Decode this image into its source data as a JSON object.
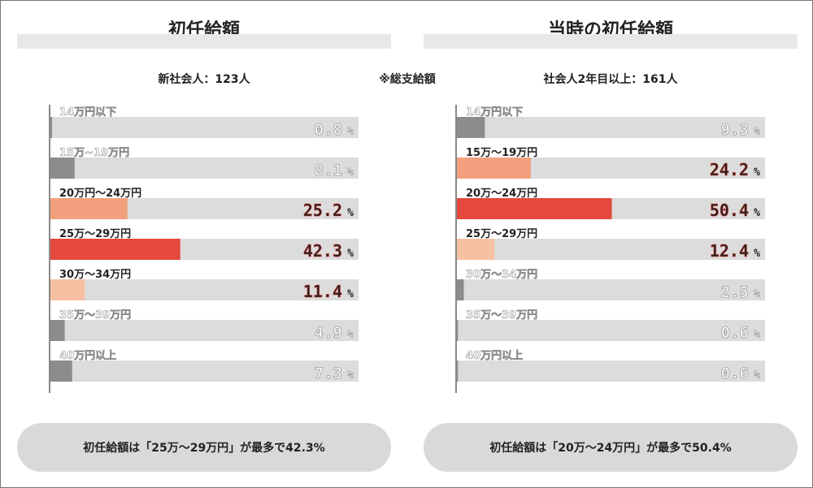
{
  "note": "※総支給額",
  "chart_data": [
    {
      "type": "bar",
      "title": "初任給額",
      "subtitle": "新社会人：123人",
      "categories": [
        "14万円以下",
        "15万~19万円",
        "20万円～24万円",
        "25万～29万円",
        "30万～34万円",
        "35万～39万円",
        "40万円以上"
      ],
      "values": [
        0.8,
        8.1,
        25.2,
        42.3,
        11.4,
        4.9,
        7.3
      ],
      "value_labels": [
        "0.8",
        "8.1",
        "25.2",
        "42.3",
        "11.4",
        "4.9",
        "7.3"
      ],
      "unit": "%",
      "xlim": [
        0,
        100
      ],
      "colors": [
        "#8c8c8c",
        "#8c8c8c",
        "#f2a07e",
        "#e5483c",
        "#f6c0a2",
        "#8c8c8c",
        "#8c8c8c"
      ],
      "summary": "初任給額は「25万～29万円」が最多で42.3%"
    },
    {
      "type": "bar",
      "title": "当時の初任給額",
      "subtitle": "社会人2年目以上：161人",
      "categories": [
        "14万円以下",
        "15万～19万円",
        "20万～24万円",
        "25万～29万円",
        "30万～34万円",
        "35万～39万円",
        "40万円以上"
      ],
      "values": [
        9.3,
        24.2,
        50.4,
        12.4,
        2.5,
        0.6,
        0.6
      ],
      "value_labels": [
        "9.3",
        "24.2",
        "50.4",
        "12.4",
        "2.5",
        "0.6",
        "0.6"
      ],
      "unit": "%",
      "xlim": [
        0,
        100
      ],
      "colors": [
        "#8c8c8c",
        "#f2a07e",
        "#e5483c",
        "#f6c0a2",
        "#8c8c8c",
        "#8c8c8c",
        "#8c8c8c"
      ],
      "summary": "初任給額は「20万～24万円」が最多で50.4%"
    }
  ]
}
